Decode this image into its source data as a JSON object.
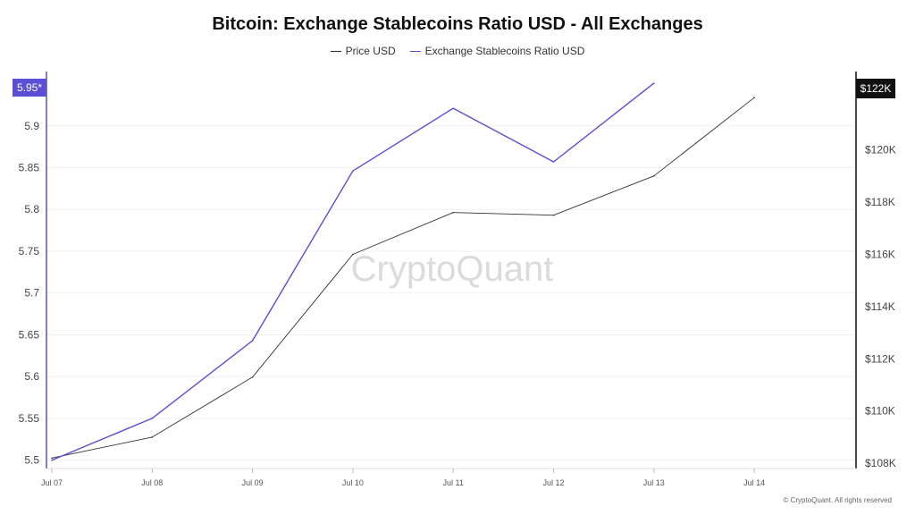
{
  "chart_data": {
    "type": "line",
    "title": "Bitcoin: Exchange Stablecoins Ratio USD - All Exchanges",
    "categories": [
      "Jul 07",
      "Jul 08",
      "Jul 09",
      "Jul 10",
      "Jul 11",
      "Jul 12",
      "Jul 13",
      "Jul 14"
    ],
    "series": [
      {
        "name": "Price USD",
        "axis": "right",
        "color": "#333333",
        "values": [
          108200,
          109000,
          111300,
          116000,
          117600,
          117500,
          119000,
          122000
        ]
      },
      {
        "name": "Exchange Stablecoins Ratio USD",
        "axis": "left",
        "color": "#5b4fd6",
        "values": [
          5.5,
          5.55,
          5.643,
          5.846,
          5.921,
          5.857,
          5.951,
          null
        ]
      }
    ],
    "left_axis": {
      "ylim": [
        5.49,
        5.965
      ],
      "ticks": [
        5.5,
        5.55,
        5.6,
        5.65,
        5.7,
        5.75,
        5.8,
        5.85,
        5.9
      ],
      "tick_labels": [
        "5.5",
        "5.55",
        "5.6",
        "5.65",
        "5.7",
        "5.75",
        "5.8",
        "5.85",
        "5.9"
      ],
      "current_label": "5.95*"
    },
    "right_axis": {
      "ylim": [
        107800,
        123000
      ],
      "ticks": [
        108000,
        110000,
        112000,
        114000,
        116000,
        118000,
        120000
      ],
      "tick_labels": [
        "$108K",
        "$110K",
        "$112K",
        "$114K",
        "$116K",
        "$118K",
        "$120K"
      ],
      "current_label": "$122K"
    },
    "legend_position": "top-center",
    "grid": true,
    "watermark": "CryptoQuant",
    "credit": "© CryptoQuant. All rights reserved"
  }
}
